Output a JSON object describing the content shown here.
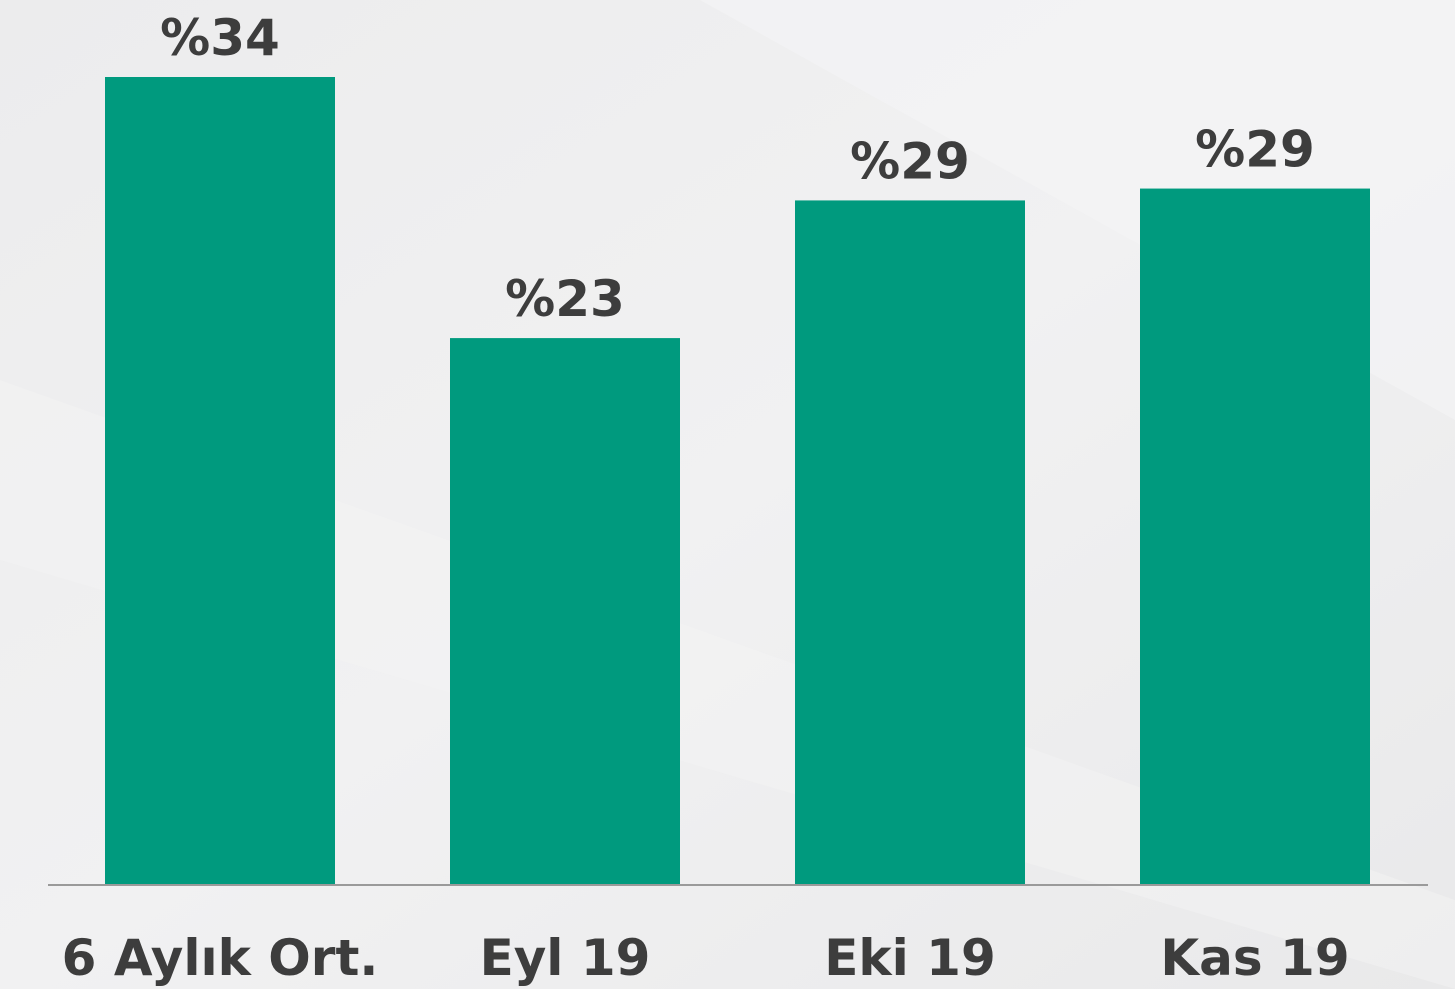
{
  "chart_data": {
    "type": "bar",
    "categories": [
      "6 Aylık Ort.",
      "Eyl 19",
      "Eki 19",
      "Kas 19"
    ],
    "values": [
      34,
      23,
      28.8,
      29.3
    ],
    "value_labels": [
      "%34",
      "%23",
      "%29",
      "%29"
    ],
    "color": "#009a7e"
  }
}
